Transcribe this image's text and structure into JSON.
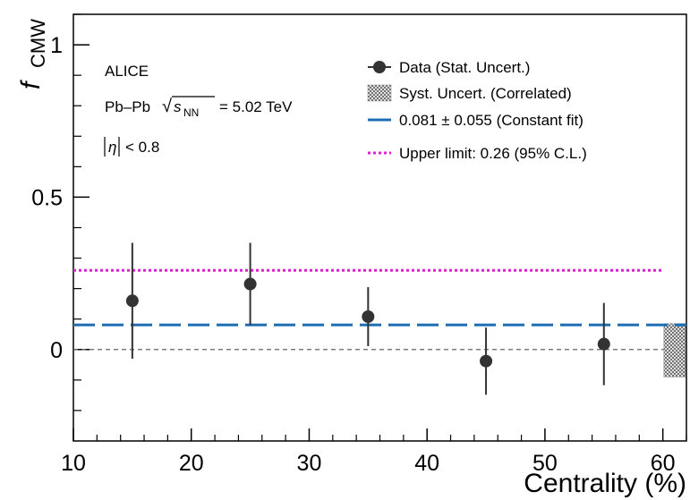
{
  "chart_data": {
    "type": "scatter",
    "xlabel": "Centrality (%)",
    "ylabel_main": "f",
    "ylabel_sub": "CMW",
    "xlim": [
      10,
      62
    ],
    "ylim": [
      -0.3,
      1.1
    ],
    "xticks": [
      10,
      20,
      30,
      40,
      50,
      60
    ],
    "yticks": [
      0,
      0.5,
      1
    ],
    "xtick_labels": [
      "10",
      "20",
      "30",
      "40",
      "50",
      "60"
    ],
    "ytick_labels": [
      "0",
      "0.5",
      "1"
    ],
    "series": [
      {
        "name": "Data (Stat. Uncert.)",
        "x": [
          15,
          25,
          35,
          45,
          55
        ],
        "y": [
          0.16,
          0.215,
          0.108,
          -0.038,
          0.018
        ],
        "err": [
          0.19,
          0.135,
          0.097,
          0.11,
          0.135
        ]
      }
    ],
    "syst_band": {
      "x": 61,
      "y_low": -0.09,
      "y_high": 0.085
    },
    "constant_fit": {
      "value": 0.081,
      "error": 0.055,
      "x_range": [
        10,
        62
      ]
    },
    "upper_limit": {
      "value": 0.26,
      "x_range": [
        10,
        60
      ]
    },
    "zero_line": 0,
    "colors": {
      "data": "#333333",
      "fit": "#1f6fb5",
      "limit": "#e020d0",
      "zero": "#666666"
    }
  },
  "annotations": {
    "experiment": "ALICE",
    "system_prefix": "Pb–Pb",
    "sqrt_sym": "√",
    "s_label": "s",
    "s_sub": "NN",
    "energy": "= 5.02 TeV",
    "eta_cut": "< 0.8",
    "eta_sym": "η"
  },
  "legend": {
    "data": "Data (Stat. Uncert.)",
    "syst": "Syst. Uncert. (Correlated)",
    "fit": "0.081 ± 0.055 (Constant fit)",
    "limit": "Upper limit: 0.26 (95% C.L.)"
  }
}
